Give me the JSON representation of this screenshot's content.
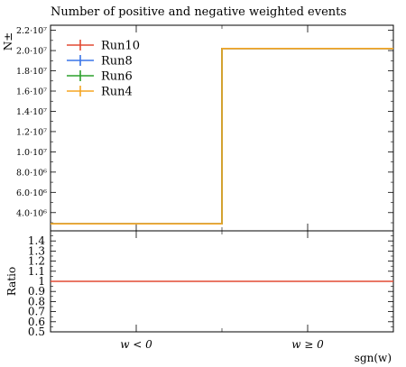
{
  "chart_data": [
    {
      "type": "line",
      "title": "Number of positive and negative weighted events",
      "ylabel": "N±",
      "xlabel": "",
      "categories": [
        "w < 0",
        "w ≥ 0"
      ],
      "yticks": [
        "2.2·10⁷",
        "2.0·10⁷",
        "1.8·10⁷",
        "1.6·10⁷",
        "1.4·10⁷",
        "1.2·10⁷",
        "1.0·10⁷",
        "8.0·10⁶",
        "6.0·10⁶",
        "4.0·10⁶"
      ],
      "ytick_values": [
        22000000,
        20000000,
        18000000,
        16000000,
        14000000,
        12000000,
        10000000,
        8000000,
        6000000,
        4000000
      ],
      "ylim": [
        2200000,
        22500000
      ],
      "legend_position": "top-left",
      "series": [
        {
          "name": "Run10",
          "color": "#e24a33",
          "values": [
            2900000,
            20200000
          ]
        },
        {
          "name": "Run8",
          "color": "#3a75e8",
          "values": [
            2900000,
            20200000
          ]
        },
        {
          "name": "Run6",
          "color": "#2ca02c",
          "values": [
            2900000,
            20200000
          ]
        },
        {
          "name": "Run4",
          "color": "#f5a623",
          "values": [
            2900000,
            20200000
          ]
        }
      ]
    },
    {
      "type": "line",
      "ylabel": "Ratio",
      "xlabel": "sgn(w)",
      "categories": [
        "w < 0",
        "w ≥ 0"
      ],
      "yticks": [
        "1.4",
        "1.3",
        "1.2",
        "1.1",
        "1",
        "0.9",
        "0.8",
        "0.7",
        "0.6",
        "0.5"
      ],
      "ytick_values": [
        1.4,
        1.3,
        1.2,
        1.1,
        1.0,
        0.9,
        0.8,
        0.7,
        0.6,
        0.5
      ],
      "ylim": [
        0.5,
        1.5
      ],
      "series": [
        {
          "name": "Run10",
          "color": "#e24a33",
          "values": [
            1.0,
            1.0
          ]
        }
      ]
    }
  ]
}
